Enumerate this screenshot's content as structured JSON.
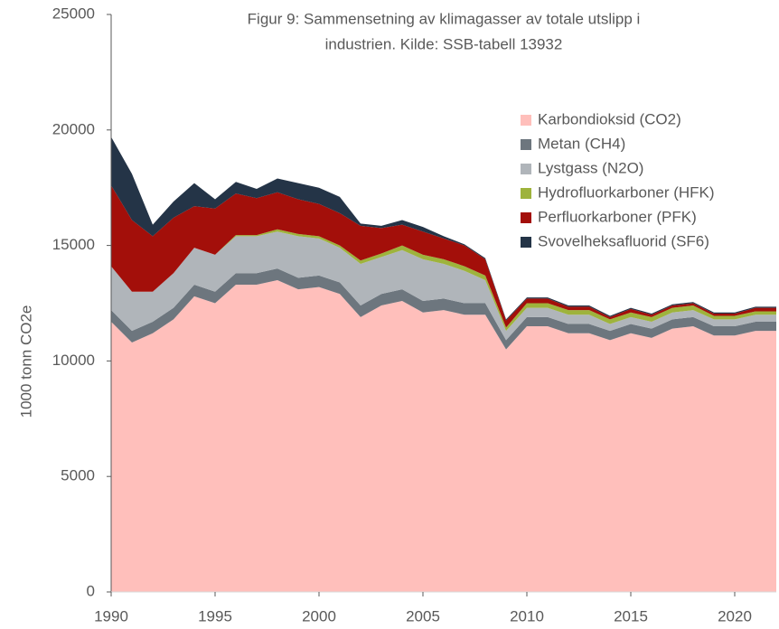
{
  "chart_data": {
    "type": "stacked_area",
    "title": [
      "Figur 9: Sammensetning av klimagasser av totale utslipp i",
      "industrien. Kilde: SSB-tabell 13932"
    ],
    "y_label": "1000 tonn CO2e",
    "x": [
      1990,
      1991,
      1992,
      1993,
      1994,
      1995,
      1996,
      1997,
      1998,
      1999,
      2000,
      2001,
      2002,
      2003,
      2004,
      2005,
      2006,
      2007,
      2008,
      2009,
      2010,
      2011,
      2012,
      2013,
      2014,
      2015,
      2016,
      2017,
      2018,
      2019,
      2020,
      2021,
      2022
    ],
    "xlim": [
      1990,
      2022
    ],
    "xticks": [
      1990,
      1995,
      2000,
      2005,
      2010,
      2015,
      2020
    ],
    "ylim": [
      0,
      25000
    ],
    "yticks": [
      0,
      5000,
      10000,
      15000,
      20000,
      25000
    ],
    "grid": false,
    "legend": "upper right",
    "series": [
      {
        "name": "Karbondioksid (CO2)",
        "color": "#ffbfbb",
        "values": [
          11700,
          10800,
          11200,
          11800,
          12800,
          12500,
          13300,
          13300,
          13500,
          13100,
          13200,
          12900,
          11900,
          12400,
          12600,
          12100,
          12200,
          12000,
          12000,
          10500,
          11500,
          11500,
          11200,
          11200,
          10900,
          11200,
          11000,
          11400,
          11500,
          11100,
          11100,
          11300,
          11300
        ]
      },
      {
        "name": "Metan (CH4)",
        "color": "#6d767e",
        "values": [
          500,
          500,
          500,
          500,
          500,
          500,
          500,
          500,
          500,
          500,
          500,
          500,
          500,
          500,
          500,
          500,
          500,
          500,
          500,
          400,
          400,
          400,
          400,
          400,
          400,
          400,
          400,
          400,
          400,
          400,
          400,
          400,
          400
        ]
      },
      {
        "name": "Lystgass (N2O)",
        "color": "#b0b5ba",
        "values": [
          1900,
          1700,
          1300,
          1500,
          1600,
          1600,
          1600,
          1600,
          1600,
          1800,
          1600,
          1500,
          1800,
          1600,
          1700,
          1800,
          1500,
          1400,
          1000,
          400,
          400,
          400,
          400,
          400,
          300,
          300,
          300,
          300,
          300,
          300,
          300,
          300,
          300
        ]
      },
      {
        "name": "Hydrofluorkarboner (HFK)",
        "color": "#9eb33c",
        "values": [
          0,
          0,
          0,
          0,
          0,
          0,
          50,
          50,
          100,
          100,
          100,
          100,
          150,
          150,
          200,
          200,
          200,
          200,
          200,
          150,
          200,
          200,
          200,
          200,
          200,
          200,
          200,
          200,
          200,
          150,
          150,
          150,
          150
        ]
      },
      {
        "name": "Perfluorkarboner (PFK)",
        "color": "#a30f0a",
        "values": [
          3500,
          3100,
          2400,
          2400,
          1800,
          2000,
          1800,
          1600,
          1600,
          1500,
          1400,
          1400,
          1500,
          1100,
          900,
          1000,
          900,
          900,
          700,
          300,
          200,
          200,
          150,
          150,
          100,
          150,
          100,
          100,
          100,
          100,
          100,
          150,
          150
        ]
      },
      {
        "name": "Svovelheksafluorid (SF6)",
        "color": "#243447",
        "values": [
          2100,
          2000,
          500,
          700,
          1000,
          400,
          500,
          400,
          600,
          700,
          700,
          700,
          100,
          100,
          200,
          200,
          100,
          50,
          50,
          50,
          50,
          50,
          50,
          50,
          50,
          50,
          50,
          50,
          50,
          50,
          50,
          50,
          50
        ]
      }
    ]
  }
}
